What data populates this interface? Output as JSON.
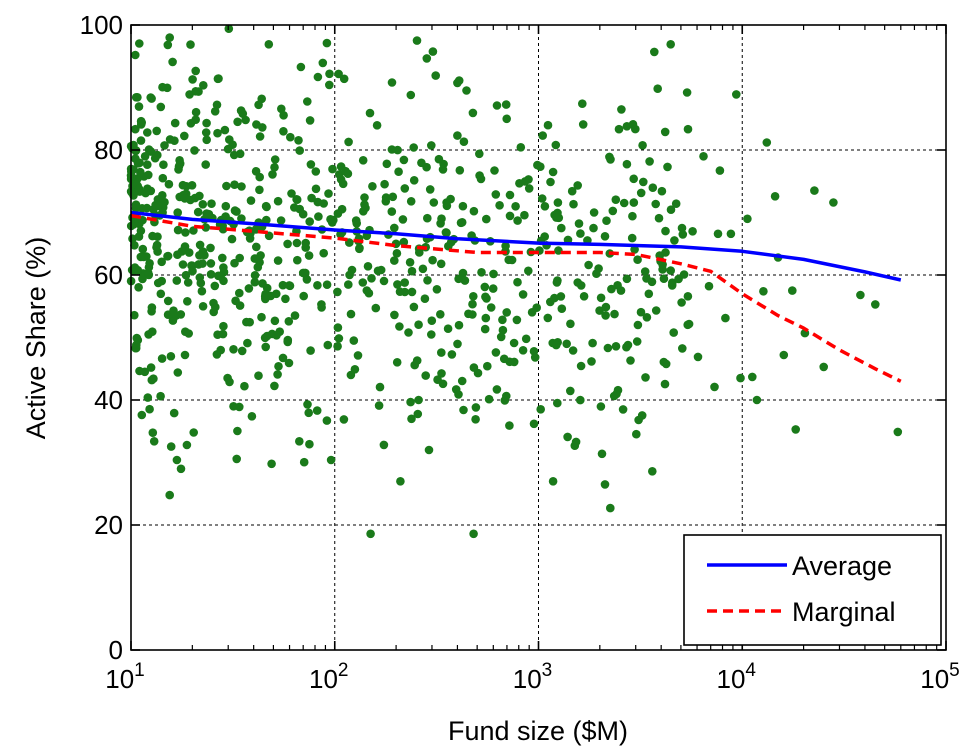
{
  "chart_data": {
    "type": "scatter",
    "xlabel": "Fund size ($M)",
    "ylabel": "Active Share (%)",
    "xscale": "log",
    "xlim": [
      10,
      100000
    ],
    "ylim": [
      0,
      100
    ],
    "xticks": [
      {
        "value": 10,
        "base": "10",
        "exp": "1"
      },
      {
        "value": 100,
        "base": "10",
        "exp": "2"
      },
      {
        "value": 1000,
        "base": "10",
        "exp": "3"
      },
      {
        "value": 10000,
        "base": "10",
        "exp": "4"
      },
      {
        "value": 100000,
        "base": "10",
        "exp": "5"
      }
    ],
    "yticks": [
      0,
      20,
      40,
      60,
      80,
      100
    ],
    "grid": true,
    "legend_position": "bottom-right",
    "point_color": "#1a7a1a",
    "points_note": "fund observations",
    "points": [
      [
        10.5,
        95.2
      ],
      [
        11.8,
        73.1
      ],
      [
        12.5,
        88.4
      ],
      [
        13.2,
        71.2
      ],
      [
        14.0,
        86.9
      ],
      [
        15.1,
        63.0
      ],
      [
        16.0,
        94.1
      ],
      [
        17.2,
        77.4
      ],
      [
        18.5,
        66.8
      ],
      [
        19.4,
        88.9
      ],
      [
        20.6,
        72.3
      ],
      [
        22.0,
        58.7
      ],
      [
        23.5,
        84.3
      ],
      [
        25.1,
        69.1
      ],
      [
        26.7,
        91.4
      ],
      [
        28.4,
        61.2
      ],
      [
        30.2,
        99.4
      ],
      [
        32.1,
        79.2
      ],
      [
        34.3,
        55.1
      ],
      [
        36.5,
        84.8
      ],
      [
        38.8,
        71.9
      ],
      [
        41.2,
        64.5
      ],
      [
        43.8,
        88.2
      ],
      [
        46.6,
        57.9
      ],
      [
        49.5,
        76.1
      ],
      [
        52.7,
        62.3
      ],
      [
        56.0,
        83.0
      ],
      [
        59.5,
        52.6
      ],
      [
        63.3,
        70.8
      ],
      [
        67.3,
        79.9
      ],
      [
        71.5,
        60.2
      ],
      [
        76.1,
        47.9
      ],
      [
        80.9,
        73.8
      ],
      [
        86.0,
        55.3
      ],
      [
        91.5,
        97.1
      ],
      [
        97.2,
        68.4
      ],
      [
        103,
        57.3
      ],
      [
        110,
        74.6
      ],
      [
        117,
        81.3
      ],
      [
        124,
        49.5
      ],
      [
        132,
        64.2
      ],
      [
        140,
        72.4
      ],
      [
        149,
        85.9
      ],
      [
        159,
        54.7
      ],
      [
        169,
        60.8
      ],
      [
        180,
        77.8
      ],
      [
        191,
        90.8
      ],
      [
        203,
        58.5
      ],
      [
        216,
        68.9
      ],
      [
        230,
        50.8
      ],
      [
        244,
        80.4
      ],
      [
        260,
        63.6
      ],
      [
        277,
        56.2
      ],
      [
        294,
        73.7
      ],
      [
        313,
        91.9
      ],
      [
        333,
        61.8
      ],
      [
        354,
        71.6
      ],
      [
        376,
        47.3
      ],
      [
        400,
        82.3
      ],
      [
        426,
        60.3
      ],
      [
        453,
        53.8
      ],
      [
        482,
        70.2
      ],
      [
        512,
        79.4
      ],
      [
        545,
        58.1
      ],
      [
        580,
        65.4
      ],
      [
        617,
        72.9
      ],
      [
        656,
        50.1
      ],
      [
        698,
        85.0
      ],
      [
        742,
        62.4
      ],
      [
        790,
        68.7
      ],
      [
        840,
        56.9
      ],
      [
        893,
        75.3
      ],
      [
        950,
        47.8
      ],
      [
        1010,
        63.9
      ],
      [
        1075,
        71.0
      ],
      [
        1143,
        55.7
      ],
      [
        1216,
        80.8
      ],
      [
        1294,
        67.5
      ],
      [
        1376,
        49.0
      ],
      [
        1464,
        73.4
      ],
      [
        1557,
        58.8
      ],
      [
        1657,
        84.1
      ],
      [
        1762,
        61.6
      ],
      [
        1875,
        70.0
      ],
      [
        1994,
        54.3
      ],
      [
        2121,
        66.2
      ],
      [
        2257,
        78.5
      ],
      [
        2400,
        48.6
      ],
      [
        2553,
        86.5
      ],
      [
        2716,
        59.4
      ],
      [
        2890,
        69.4
      ],
      [
        3074,
        52.0
      ],
      [
        3270,
        74.9
      ],
      [
        3478,
        57.0
      ],
      [
        3700,
        95.7
      ],
      [
        3936,
        63.1
      ],
      [
        4187,
        82.9
      ],
      [
        4454,
        60.7
      ],
      [
        4738,
        71.4
      ],
      [
        5040,
        55.6
      ],
      [
        5362,
        89.2
      ],
      [
        5704,
        67.0
      ],
      [
        6068,
        46.9
      ],
      [
        6455,
        79.0
      ],
      [
        6866,
        58.2
      ],
      [
        7304,
        42.1
      ],
      [
        7770,
        76.7
      ],
      [
        8266,
        53.1
      ],
      [
        8793,
        66.6
      ],
      [
        9354,
        88.9
      ],
      [
        10600,
        69.0
      ],
      [
        11800,
        40.0
      ],
      [
        13200,
        81.2
      ],
      [
        14500,
        72.6
      ],
      [
        16000,
        47.2
      ],
      [
        18300,
        35.3
      ],
      [
        20300,
        50.7
      ],
      [
        22600,
        73.5
      ],
      [
        25100,
        45.3
      ],
      [
        28000,
        71.6
      ],
      [
        38000,
        56.8
      ],
      [
        45000,
        55.3
      ],
      [
        58000,
        34.9
      ],
      [
        15000,
        62.8
      ],
      [
        12700,
        57.4
      ],
      [
        17600,
        57.5
      ],
      [
        11200,
        43.7
      ],
      [
        9800,
        43.5
      ],
      [
        7600,
        66.6
      ],
      [
        4200,
        63.6
      ],
      [
        2050,
        31.4
      ],
      [
        2120,
        26.5
      ],
      [
        2250,
        22.7
      ],
      [
        1180,
        27.0
      ],
      [
        3620,
        28.6
      ],
      [
        2600,
        38.5
      ],
      [
        1530,
        33.3
      ],
      [
        1390,
        34.1
      ],
      [
        3100,
        36.8
      ],
      [
        950,
        36.2
      ],
      [
        720,
        35.9
      ],
      [
        480,
        18.6
      ],
      [
        290,
        32.0
      ],
      [
        210,
        27.0
      ],
      [
        150,
        18.6
      ],
      [
        96,
        30.4
      ],
      [
        67,
        33.4
      ],
      [
        49,
        29.8
      ],
      [
        34,
        38.9
      ],
      [
        17.6,
        29.0
      ],
      [
        16.8,
        30.4
      ],
      [
        18.8,
        32.8
      ],
      [
        13.0,
        33.4
      ],
      [
        11.3,
        37.6
      ],
      [
        16.3,
        37.9
      ],
      [
        20.3,
        34.8
      ],
      [
        22.6,
        55.0
      ],
      [
        14.0,
        57.0
      ],
      [
        12.2,
        50.5
      ],
      [
        10.6,
        48.3
      ],
      [
        15.7,
        47.0
      ],
      [
        18.4,
        47.2
      ],
      [
        26.4,
        47.3
      ],
      [
        29.8,
        43.5
      ],
      [
        39.2,
        37.4
      ],
      [
        45.8,
        48.5
      ],
      [
        52.4,
        44.1
      ],
      [
        73.5,
        39.3
      ],
      [
        82.0,
        38.3
      ],
      [
        91.5,
        36.7
      ],
      [
        120,
        44.0
      ],
      [
        165,
        39.1
      ],
      [
        238,
        37.0
      ],
      [
        258,
        40.0
      ],
      [
        340,
        42.6
      ],
      [
        405,
        40.9
      ],
      [
        505,
        44.3
      ],
      [
        625,
        41.7
      ],
      [
        760,
        46.1
      ],
      [
        870,
        49.8
      ]
    ],
    "series": [
      {
        "name": "Average",
        "color": "#0000ff",
        "style": "solid",
        "x": [
          10,
          20,
          40,
          100,
          200,
          400,
          1000,
          2000,
          5000,
          10000,
          20000,
          40000,
          60000
        ],
        "y": [
          70.0,
          68.9,
          68.2,
          67.2,
          66.6,
          65.8,
          65.1,
          64.9,
          64.5,
          63.8,
          62.5,
          60.5,
          59.2
        ]
      },
      {
        "name": "Marginal",
        "color": "#ff0000",
        "style": "dashed",
        "x": [
          10,
          20,
          40,
          100,
          200,
          500,
          1000,
          2000,
          3000,
          5000,
          7000,
          10000,
          15000,
          20000,
          30000,
          45000,
          60000
        ],
        "y": [
          69.5,
          67.8,
          67.0,
          65.9,
          64.7,
          63.6,
          63.6,
          63.6,
          63.3,
          61.8,
          60.6,
          57.0,
          53.5,
          51.5,
          48.0,
          45.0,
          43.0
        ]
      }
    ]
  }
}
